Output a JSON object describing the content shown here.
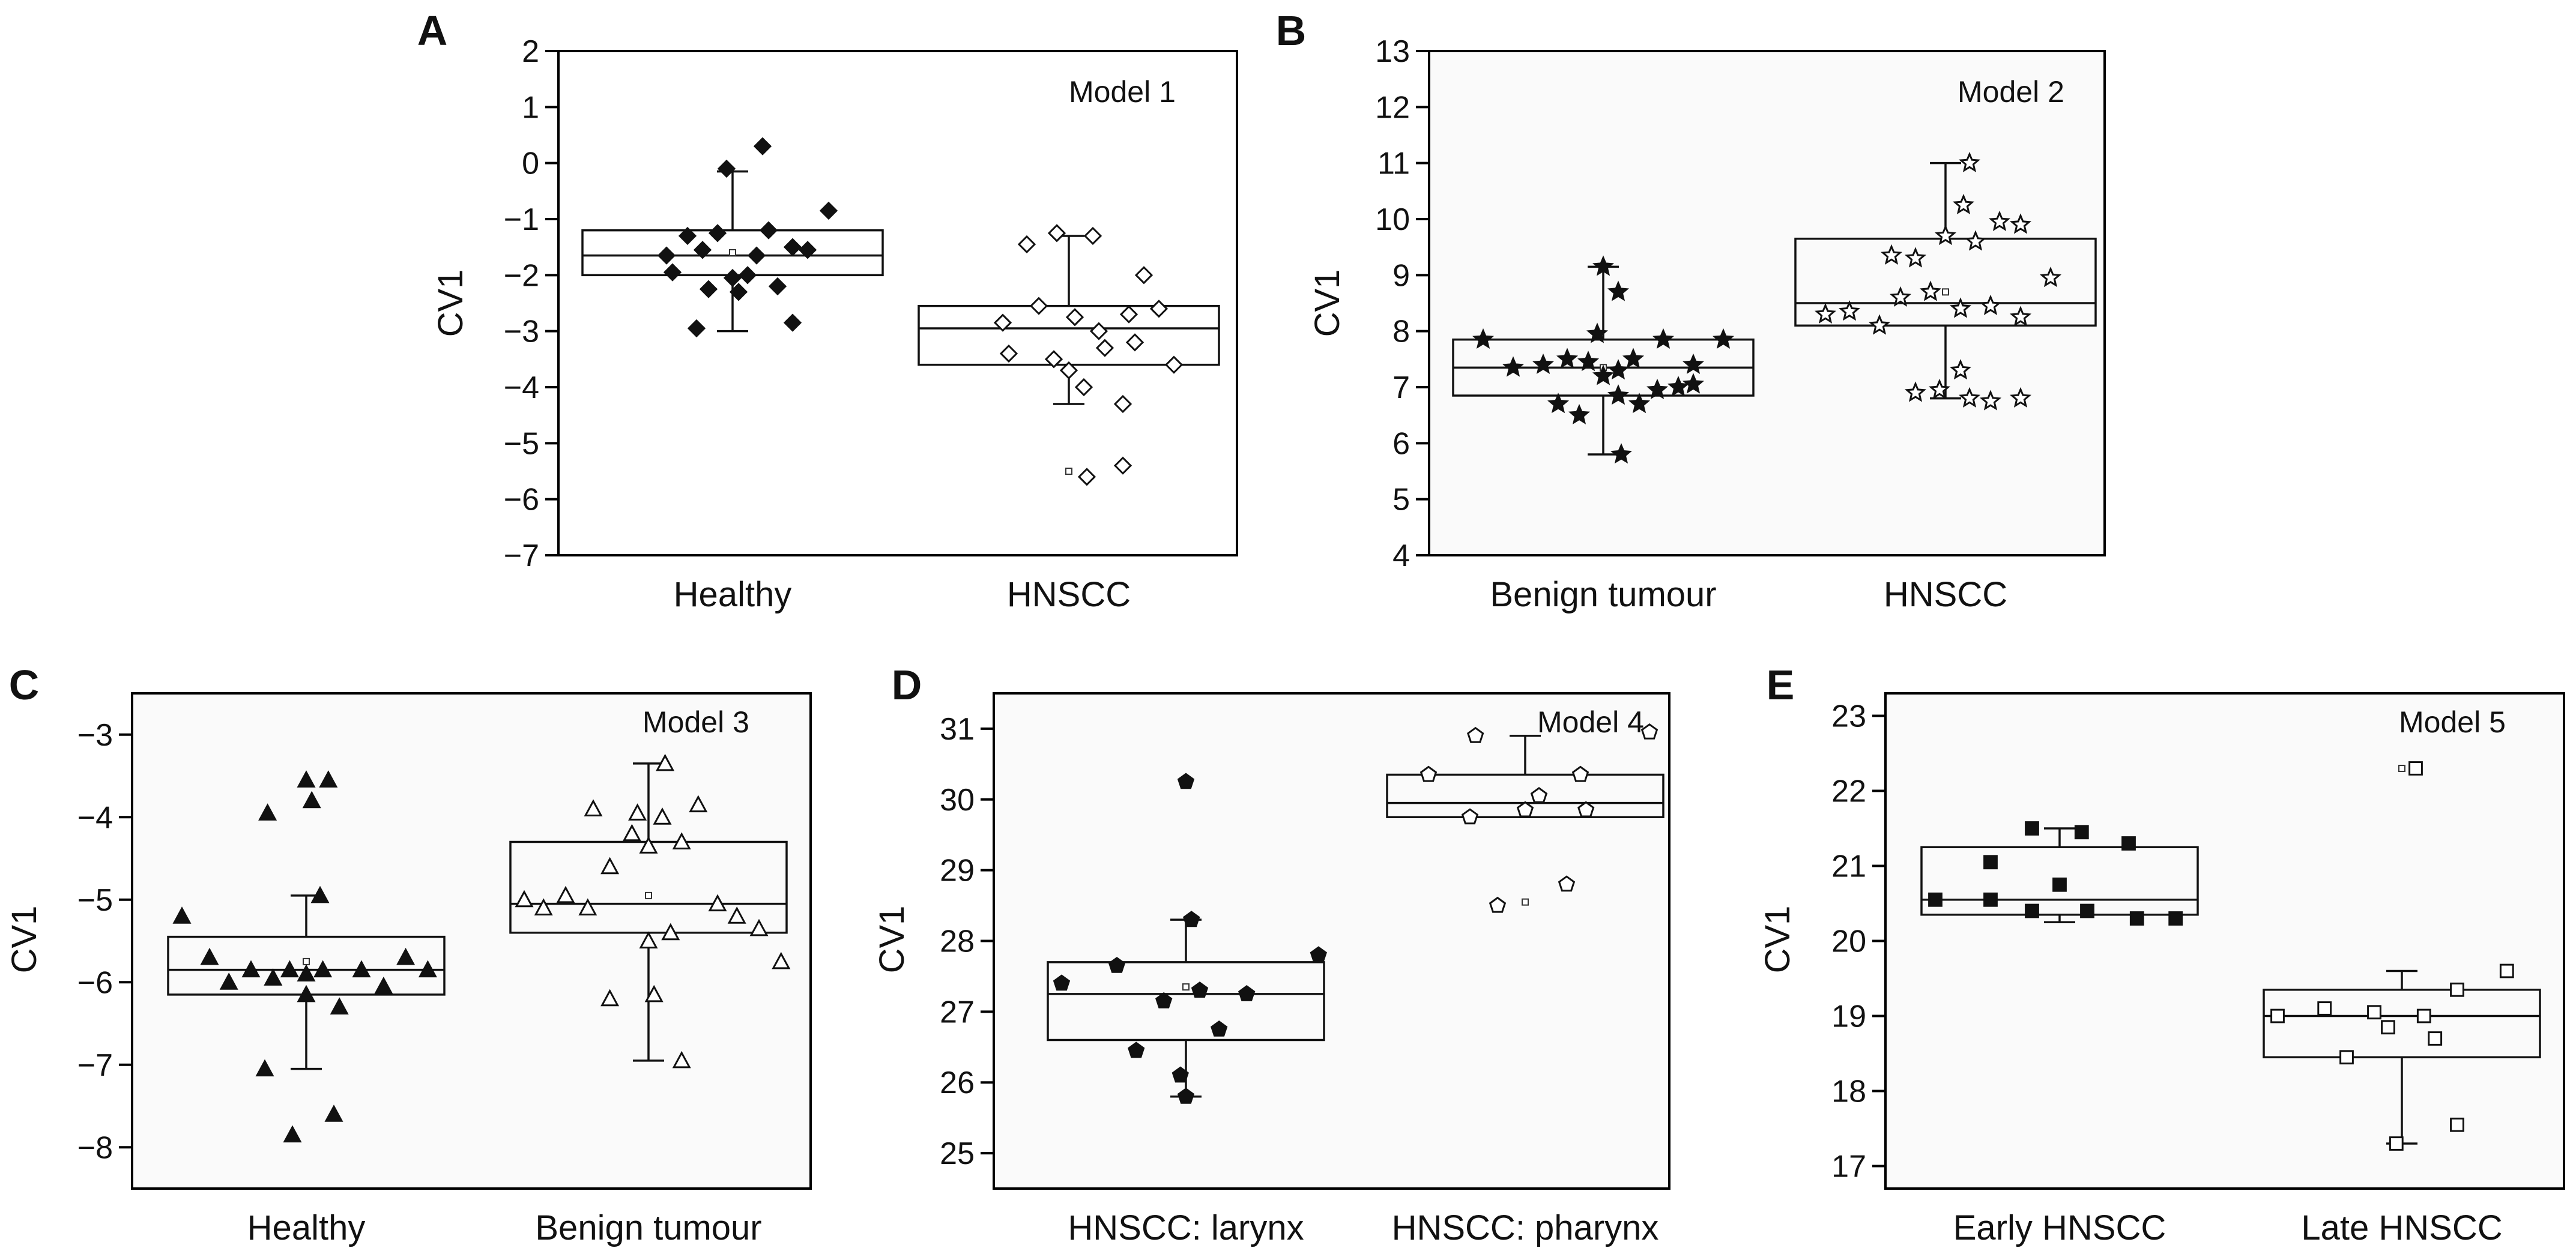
{
  "ylabel": "CV1",
  "chart_data": [
    {
      "panel": "A",
      "type": "box",
      "model": "Model 1",
      "ylabel": "CV1",
      "ylim": [
        -7,
        2
      ],
      "ticks": [
        2,
        1,
        0,
        -1,
        -2,
        -3,
        -4,
        -5,
        -6,
        -7
      ],
      "categories": [
        "Healthy",
        "HNSCC"
      ],
      "groups": [
        {
          "label": "Healthy",
          "marker": "diamond-filled",
          "q1": -2.0,
          "median": -1.65,
          "q3": -1.2,
          "whisker_low": -3.0,
          "whisker_high": -0.15,
          "mean": -1.6,
          "points": [
            [
              0.3,
              -1.95
            ],
            [
              0.62,
              -1.2
            ],
            [
              0.35,
              -1.3
            ],
            [
              0.45,
              -1.25
            ],
            [
              0.55,
              -2.0
            ],
            [
              0.4,
              -1.55
            ],
            [
              0.28,
              -1.65
            ],
            [
              0.7,
              -1.5
            ],
            [
              0.58,
              -1.65
            ],
            [
              0.75,
              -1.55
            ],
            [
              0.5,
              -2.05
            ],
            [
              0.65,
              -2.2
            ],
            [
              0.42,
              -2.25
            ],
            [
              0.52,
              -2.3
            ],
            [
              0.38,
              -2.95
            ],
            [
              0.7,
              -2.85
            ],
            [
              0.48,
              -0.1
            ],
            [
              0.6,
              0.3
            ],
            [
              0.82,
              -0.85
            ]
          ]
        },
        {
          "label": "HNSCC",
          "marker": "diamond-open",
          "q1": -3.6,
          "median": -2.95,
          "q3": -2.55,
          "whisker_low": -4.3,
          "whisker_high": -1.3,
          "mean": -5.5,
          "points": [
            [
              0.28,
              -2.85
            ],
            [
              0.4,
              -2.55
            ],
            [
              0.52,
              -2.75
            ],
            [
              0.6,
              -3.0
            ],
            [
              0.7,
              -2.7
            ],
            [
              0.8,
              -2.6
            ],
            [
              0.3,
              -3.4
            ],
            [
              0.45,
              -3.5
            ],
            [
              0.62,
              -3.3
            ],
            [
              0.72,
              -3.2
            ],
            [
              0.85,
              -3.6
            ],
            [
              0.5,
              -3.7
            ],
            [
              0.55,
              -4.0
            ],
            [
              0.68,
              -4.3
            ],
            [
              0.75,
              -2.0
            ],
            [
              0.58,
              -1.3
            ],
            [
              0.46,
              -1.25
            ],
            [
              0.36,
              -1.45
            ],
            [
              0.56,
              -5.6
            ],
            [
              0.68,
              -5.4
            ]
          ]
        }
      ]
    },
    {
      "panel": "B",
      "type": "box",
      "model": "Model 2",
      "ylabel": "CV1",
      "ylim": [
        4,
        13
      ],
      "ticks": [
        13,
        12,
        11,
        10,
        9,
        8,
        7,
        6,
        5,
        4
      ],
      "categories": [
        "Benign tumour",
        "HNSCC"
      ],
      "groups": [
        {
          "label": "Benign tumour",
          "marker": "star-filled",
          "q1": 6.85,
          "median": 7.35,
          "q3": 7.85,
          "whisker_low": 5.8,
          "whisker_high": 9.15,
          "mean": 7.35,
          "points": [
            [
              0.1,
              7.85
            ],
            [
              0.2,
              7.35
            ],
            [
              0.3,
              7.4
            ],
            [
              0.38,
              7.5
            ],
            [
              0.45,
              7.45
            ],
            [
              0.55,
              7.3
            ],
            [
              0.6,
              7.5
            ],
            [
              0.7,
              7.85
            ],
            [
              0.8,
              7.4
            ],
            [
              0.9,
              7.85
            ],
            [
              0.5,
              7.2
            ],
            [
              0.55,
              6.85
            ],
            [
              0.35,
              6.7
            ],
            [
              0.42,
              6.5
            ],
            [
              0.62,
              6.7
            ],
            [
              0.68,
              6.95
            ],
            [
              0.75,
              7.0
            ],
            [
              0.8,
              7.05
            ],
            [
              0.55,
              8.7
            ],
            [
              0.5,
              9.15
            ],
            [
              0.56,
              5.8
            ],
            [
              0.48,
              7.95
            ]
          ]
        },
        {
          "label": "HNSCC",
          "marker": "star-open",
          "q1": 8.1,
          "median": 8.5,
          "q3": 9.65,
          "whisker_low": 6.8,
          "whisker_high": 11.0,
          "mean": 8.7,
          "points": [
            [
              0.1,
              8.3
            ],
            [
              0.18,
              8.35
            ],
            [
              0.28,
              8.1
            ],
            [
              0.35,
              8.6
            ],
            [
              0.45,
              8.7
            ],
            [
              0.55,
              8.4
            ],
            [
              0.65,
              8.45
            ],
            [
              0.75,
              8.25
            ],
            [
              0.85,
              8.95
            ],
            [
              0.32,
              9.35
            ],
            [
              0.4,
              9.3
            ],
            [
              0.5,
              9.7
            ],
            [
              0.6,
              9.6
            ],
            [
              0.68,
              9.95
            ],
            [
              0.75,
              9.9
            ],
            [
              0.56,
              10.25
            ],
            [
              0.58,
              11.0
            ],
            [
              0.4,
              6.9
            ],
            [
              0.48,
              6.95
            ],
            [
              0.55,
              7.3
            ],
            [
              0.58,
              6.8
            ],
            [
              0.65,
              6.75
            ],
            [
              0.75,
              6.8
            ]
          ]
        }
      ]
    },
    {
      "panel": "C",
      "type": "box",
      "model": "Model 3",
      "ylabel": "CV1",
      "ylim": [
        -8.5,
        -2.5
      ],
      "ticks": [
        -3,
        -4,
        -5,
        -6,
        -7,
        -8
      ],
      "categories": [
        "Healthy",
        "Benign tumour"
      ],
      "groups": [
        {
          "label": "Healthy",
          "marker": "triangle-filled",
          "q1": -6.15,
          "median": -5.85,
          "q3": -5.45,
          "whisker_low": -7.05,
          "whisker_high": -4.95,
          "mean": -5.75,
          "points": [
            [
              0.05,
              -5.2
            ],
            [
              0.15,
              -5.7
            ],
            [
              0.22,
              -6.0
            ],
            [
              0.3,
              -5.85
            ],
            [
              0.38,
              -5.95
            ],
            [
              0.44,
              -5.85
            ],
            [
              0.5,
              -5.9
            ],
            [
              0.56,
              -5.85
            ],
            [
              0.62,
              -6.3
            ],
            [
              0.7,
              -5.85
            ],
            [
              0.78,
              -6.05
            ],
            [
              0.86,
              -5.7
            ],
            [
              0.94,
              -5.85
            ],
            [
              0.35,
              -7.05
            ],
            [
              0.5,
              -6.15
            ],
            [
              0.6,
              -7.6
            ],
            [
              0.45,
              -7.85
            ],
            [
              0.36,
              -3.95
            ],
            [
              0.52,
              -3.8
            ],
            [
              0.58,
              -3.55
            ],
            [
              0.5,
              -3.55
            ],
            [
              0.55,
              -4.95
            ]
          ]
        },
        {
          "label": "Benign tumour",
          "marker": "triangle-open",
          "q1": -5.4,
          "median": -5.05,
          "q3": -4.3,
          "whisker_low": -6.95,
          "whisker_high": -3.35,
          "mean": -4.95,
          "points": [
            [
              0.05,
              -5.0
            ],
            [
              0.12,
              -5.1
            ],
            [
              0.2,
              -4.95
            ],
            [
              0.28,
              -5.1
            ],
            [
              0.36,
              -4.6
            ],
            [
              0.44,
              -4.2
            ],
            [
              0.5,
              -4.35
            ],
            [
              0.55,
              -4.0
            ],
            [
              0.62,
              -4.3
            ],
            [
              0.68,
              -3.85
            ],
            [
              0.75,
              -5.05
            ],
            [
              0.82,
              -5.2
            ],
            [
              0.9,
              -5.35
            ],
            [
              0.98,
              -5.75
            ],
            [
              0.3,
              -3.9
            ],
            [
              0.46,
              -3.95
            ],
            [
              0.56,
              -3.35
            ],
            [
              0.5,
              -5.5
            ],
            [
              0.58,
              -5.4
            ],
            [
              0.36,
              -6.2
            ],
            [
              0.52,
              -6.15
            ],
            [
              0.62,
              -6.95
            ]
          ]
        }
      ]
    },
    {
      "panel": "D",
      "type": "box",
      "model": "Model 4",
      "ylabel": "CV1",
      "ylim": [
        24.5,
        31.5
      ],
      "ticks": [
        31,
        30,
        29,
        28,
        27,
        26,
        25
      ],
      "categories": [
        "HNSCC: larynx",
        "HNSCC: pharynx"
      ],
      "groups": [
        {
          "label": "HNSCC: larynx",
          "marker": "pentagon-filled",
          "q1": 26.6,
          "median": 27.25,
          "q3": 27.7,
          "whisker_low": 25.8,
          "whisker_high": 28.3,
          "mean": 27.35,
          "points": [
            [
              0.05,
              27.4
            ],
            [
              0.25,
              27.65
            ],
            [
              0.42,
              27.15
            ],
            [
              0.55,
              27.3
            ],
            [
              0.72,
              27.25
            ],
            [
              0.98,
              27.8
            ],
            [
              0.32,
              26.45
            ],
            [
              0.62,
              26.75
            ],
            [
              0.48,
              26.1
            ],
            [
              0.5,
              25.8
            ],
            [
              0.52,
              28.3
            ],
            [
              0.5,
              30.25
            ]
          ]
        },
        {
          "label": "HNSCC: pharynx",
          "marker": "pentagon-open",
          "q1": 29.75,
          "median": 29.95,
          "q3": 30.35,
          "whisker_low": 29.75,
          "whisker_high": 30.9,
          "mean": 28.55,
          "points": [
            [
              0.15,
              30.35
            ],
            [
              0.3,
              29.75
            ],
            [
              0.5,
              29.85
            ],
            [
              0.55,
              30.05
            ],
            [
              0.7,
              30.35
            ],
            [
              0.72,
              29.85
            ],
            [
              0.95,
              30.95
            ],
            [
              0.32,
              30.9
            ],
            [
              0.4,
              28.5
            ],
            [
              0.65,
              28.8
            ]
          ]
        }
      ]
    },
    {
      "panel": "E",
      "type": "box",
      "model": "Model 5",
      "ylabel": "CV1",
      "ylim": [
        16.7,
        23.3
      ],
      "ticks": [
        23,
        22,
        21,
        20,
        19,
        18,
        17
      ],
      "categories": [
        "Early HNSCC",
        "Late HNSCC"
      ],
      "groups": [
        {
          "label": "Early HNSCC",
          "marker": "square-filled",
          "q1": 20.35,
          "median": 20.55,
          "q3": 21.25,
          "whisker_low": 20.25,
          "whisker_high": 21.5,
          "mean": 20.75,
          "points": [
            [
              0.05,
              20.55
            ],
            [
              0.25,
              20.55
            ],
            [
              0.4,
              20.4
            ],
            [
              0.6,
              20.4
            ],
            [
              0.78,
              20.3
            ],
            [
              0.92,
              20.3
            ],
            [
              0.25,
              21.05
            ],
            [
              0.4,
              21.5
            ],
            [
              0.58,
              21.45
            ],
            [
              0.75,
              21.3
            ],
            [
              0.5,
              20.75
            ]
          ]
        },
        {
          "label": "Late HNSCC",
          "marker": "square-open",
          "q1": 18.45,
          "median": 19.0,
          "q3": 19.35,
          "whisker_low": 17.3,
          "whisker_high": 19.6,
          "mean": 22.3,
          "points": [
            [
              0.05,
              19.0
            ],
            [
              0.22,
              19.1
            ],
            [
              0.4,
              19.05
            ],
            [
              0.58,
              19.0
            ],
            [
              0.7,
              19.35
            ],
            [
              0.88,
              19.6
            ],
            [
              0.3,
              18.45
            ],
            [
              0.45,
              18.85
            ],
            [
              0.62,
              18.7
            ],
            [
              0.48,
              17.3
            ],
            [
              0.7,
              17.55
            ],
            [
              0.55,
              22.3
            ]
          ]
        }
      ]
    }
  ]
}
